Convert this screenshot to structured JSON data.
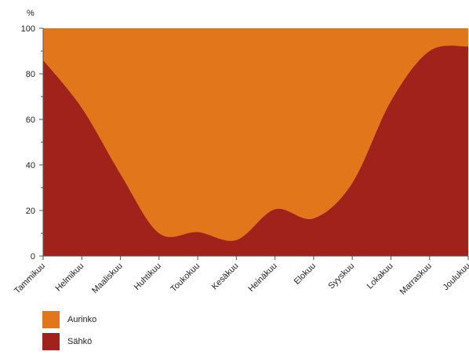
{
  "chart_data": {
    "type": "area",
    "stacked": true,
    "percent": true,
    "ylabel": "%",
    "ylim": [
      0,
      100
    ],
    "yticks": [
      0,
      20,
      40,
      60,
      80,
      100
    ],
    "categories": [
      "Tammikuu",
      "Helmikuu",
      "Maaliskuu",
      "Huhtikuu",
      "Toukokuu",
      "Kesäkuu",
      "Heinäkuu",
      "Elokuu",
      "Syyskuu",
      "Lokakuu",
      "Marraskuu",
      "Joulukuu"
    ],
    "series": [
      {
        "name": "Sähkö",
        "color": "#a0221b",
        "values": [
          86,
          65,
          36,
          10,
          10.5,
          7,
          20.5,
          16.5,
          32,
          68,
          90,
          92
        ]
      },
      {
        "name": "Aurinko",
        "color": "#e2761a",
        "values": [
          14,
          35,
          64,
          90,
          89.5,
          93,
          79.5,
          83.5,
          68,
          32,
          10,
          8
        ]
      }
    ],
    "legend": {
      "position": "bottom-left",
      "items": [
        {
          "label": "Aurinko",
          "color": "#e2761a"
        },
        {
          "label": "Sähkö",
          "color": "#a0221b"
        }
      ]
    }
  }
}
